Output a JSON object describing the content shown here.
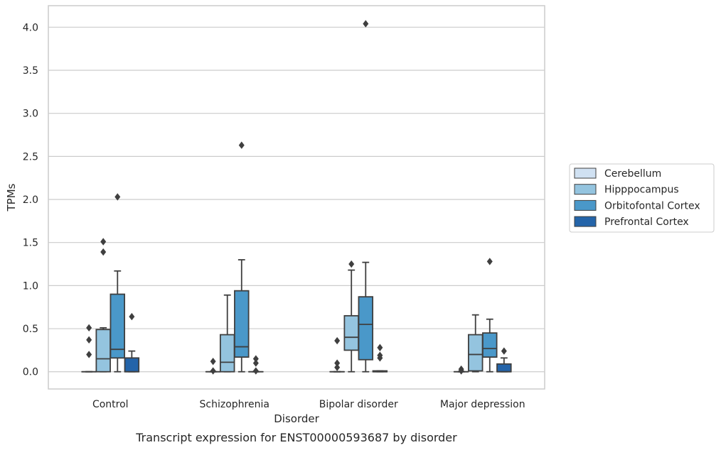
{
  "chart_data": {
    "type": "box",
    "xlabel": "Disorder",
    "ylabel": "TPMs",
    "caption": "Transcript expression for ENST00000593687 by disorder",
    "ylim": [
      -0.2,
      4.25
    ],
    "yticks": [
      0.0,
      0.5,
      1.0,
      1.5,
      2.0,
      2.5,
      3.0,
      3.5,
      4.0
    ],
    "ytick_labels": [
      "0.0",
      "0.5",
      "1.0",
      "1.5",
      "2.0",
      "2.5",
      "3.0",
      "3.5",
      "4.0"
    ],
    "grid": "horizontal",
    "legend_position": "right",
    "categories": [
      "Control",
      "Schizophrenia",
      "Bipolar disorder",
      "Major depression"
    ],
    "series": [
      {
        "name": "Cerebellum",
        "color": "#d0e1f2",
        "boxes": [
          {
            "whisker_low": 0.0,
            "q1": 0.0,
            "median": 0.0,
            "q3": 0.0,
            "whisker_high": 0.0,
            "outliers": [
              0.2,
              0.37,
              0.51
            ]
          },
          {
            "whisker_low": 0.0,
            "q1": 0.0,
            "median": 0.0,
            "q3": 0.0,
            "whisker_high": 0.0,
            "outliers": [
              0.01,
              0.12
            ]
          },
          {
            "whisker_low": 0.0,
            "q1": 0.0,
            "median": 0.0,
            "q3": 0.0,
            "whisker_high": 0.0,
            "outliers": [
              0.05,
              0.1,
              0.36
            ]
          },
          {
            "whisker_low": 0.0,
            "q1": 0.0,
            "median": 0.0,
            "q3": 0.0,
            "whisker_high": 0.0,
            "outliers": [
              0.01,
              0.03
            ]
          }
        ]
      },
      {
        "name": "Hipppocampus",
        "color": "#94c4df",
        "boxes": [
          {
            "whisker_low": 0.0,
            "q1": 0.0,
            "median": 0.15,
            "q3": 0.49,
            "whisker_high": 0.51,
            "outliers": [
              1.39,
              1.51
            ]
          },
          {
            "whisker_low": 0.0,
            "q1": 0.0,
            "median": 0.11,
            "q3": 0.43,
            "whisker_high": 0.89,
            "outliers": []
          },
          {
            "whisker_low": 0.0,
            "q1": 0.25,
            "median": 0.4,
            "q3": 0.65,
            "whisker_high": 1.18,
            "outliers": [
              1.25
            ]
          },
          {
            "whisker_low": 0.0,
            "q1": 0.01,
            "median": 0.2,
            "q3": 0.43,
            "whisker_high": 0.66,
            "outliers": []
          }
        ]
      },
      {
        "name": "Orbitofontal Cortex",
        "color": "#4a98c9",
        "boxes": [
          {
            "whisker_low": 0.0,
            "q1": 0.16,
            "median": 0.26,
            "q3": 0.9,
            "whisker_high": 1.17,
            "outliers": [
              2.03
            ]
          },
          {
            "whisker_low": 0.0,
            "q1": 0.17,
            "median": 0.29,
            "q3": 0.94,
            "whisker_high": 1.3,
            "outliers": [
              2.63
            ]
          },
          {
            "whisker_low": 0.0,
            "q1": 0.14,
            "median": 0.55,
            "q3": 0.87,
            "whisker_high": 1.27,
            "outliers": [
              4.04
            ]
          },
          {
            "whisker_low": 0.0,
            "q1": 0.17,
            "median": 0.27,
            "q3": 0.45,
            "whisker_high": 0.61,
            "outliers": [
              1.28
            ]
          }
        ]
      },
      {
        "name": "Prefrontal Cortex",
        "color": "#2464a9",
        "boxes": [
          {
            "whisker_low": 0.0,
            "q1": 0.0,
            "median": 0.0,
            "q3": 0.16,
            "whisker_high": 0.24,
            "outliers": [
              0.64
            ]
          },
          {
            "whisker_low": 0.0,
            "q1": 0.0,
            "median": 0.0,
            "q3": 0.0,
            "whisker_high": 0.0,
            "outliers": [
              0.01,
              0.1,
              0.15
            ]
          },
          {
            "whisker_low": 0.0,
            "q1": 0.0,
            "median": 0.0,
            "q3": 0.01,
            "whisker_high": 0.01,
            "outliers": [
              0.16,
              0.19,
              0.28
            ]
          },
          {
            "whisker_low": 0.0,
            "q1": 0.0,
            "median": 0.0,
            "q3": 0.09,
            "whisker_high": 0.16,
            "outliers": [
              0.24
            ]
          }
        ]
      }
    ]
  }
}
